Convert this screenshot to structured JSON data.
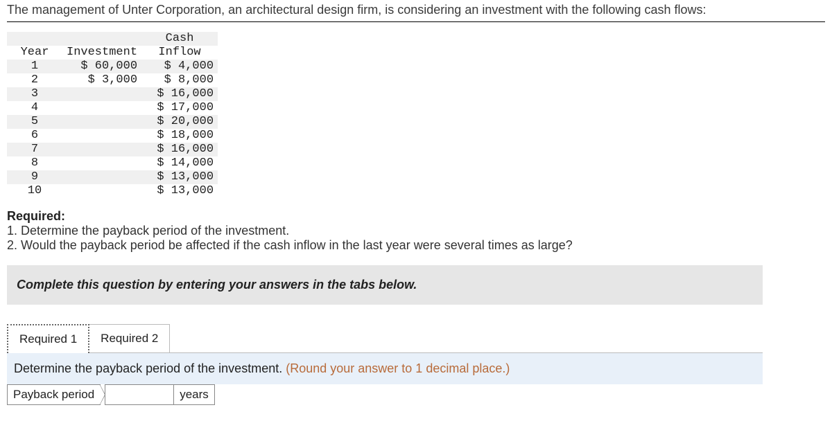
{
  "intro": "The management of Unter Corporation, an architectural design firm, is considering an investment with the following cash flows:",
  "table": {
    "headers": {
      "year": "Year",
      "investment": "Investment",
      "cash_header1": "Cash",
      "cash_header2": "Inflow"
    },
    "rows": [
      {
        "year": "1",
        "investment": "$ 60,000",
        "cash": "$ 4,000"
      },
      {
        "year": "2",
        "investment": "$ 3,000",
        "cash": "$ 8,000"
      },
      {
        "year": "3",
        "investment": "",
        "cash": "$ 16,000"
      },
      {
        "year": "4",
        "investment": "",
        "cash": "$ 17,000"
      },
      {
        "year": "5",
        "investment": "",
        "cash": "$ 20,000"
      },
      {
        "year": "6",
        "investment": "",
        "cash": "$ 18,000"
      },
      {
        "year": "7",
        "investment": "",
        "cash": "$ 16,000"
      },
      {
        "year": "8",
        "investment": "",
        "cash": "$ 14,000"
      },
      {
        "year": "9",
        "investment": "",
        "cash": "$ 13,000"
      },
      {
        "year": "10",
        "investment": "",
        "cash": "$ 13,000"
      }
    ]
  },
  "required": {
    "lead": "Required:",
    "r1": "1. Determine the payback period of the investment.",
    "r2": "2. Would the payback period be affected if the cash inflow in the last year were several times as large?"
  },
  "instruction": "Complete this question by entering your answers in the tabs below.",
  "tabs": {
    "t1": "Required 1",
    "t2": "Required 2"
  },
  "prompt": {
    "main": "Determine the payback period of the investment. ",
    "hint": "(Round your answer to 1 decimal place.)"
  },
  "answer": {
    "label": "Payback period",
    "unit": "years",
    "value": ""
  },
  "colors": {
    "instr_bg": "#e6e6e6",
    "prompt_bg": "#e8f0f9",
    "hint_color": "#b86b3a",
    "alt_row": "#f0f0f0"
  }
}
